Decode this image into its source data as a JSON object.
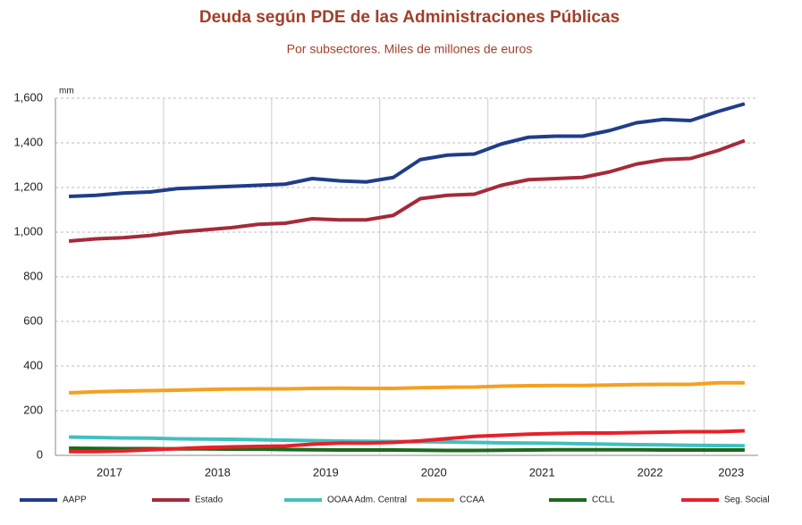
{
  "chart_data": {
    "type": "line",
    "title": "Deuda según PDE de las Administraciones Públicas",
    "subtitle": "Por subsectores. Miles de millones de euros",
    "y_label": "mm",
    "categories": [
      "2017",
      null,
      null,
      null,
      "2018",
      null,
      null,
      null,
      "2019",
      null,
      null,
      null,
      "2020",
      null,
      null,
      null,
      "2021",
      null,
      null,
      null,
      "2022",
      null,
      null,
      null,
      "2023",
      null
    ],
    "ylim": [
      0,
      1600
    ],
    "yticks": [
      0,
      200,
      400,
      600,
      800,
      {
        "value": 1000,
        "label": "1,000"
      },
      {
        "value": 1200,
        "label": "1,200"
      },
      {
        "value": 1400,
        "label": "1,400"
      },
      {
        "value": 1600,
        "label": "1,600"
      }
    ],
    "grid": true,
    "legend": "bottom",
    "series": [
      {
        "name": "AAPP",
        "color": "#1f3d8a",
        "values": [
          1160,
          1165,
          1175,
          1180,
          1195,
          1200,
          1205,
          1210,
          1215,
          1240,
          1230,
          1225,
          1245,
          1325,
          1345,
          1350,
          1395,
          1425,
          1430,
          1430,
          1455,
          1490,
          1505,
          1500,
          1540,
          1575
        ]
      },
      {
        "name": "Estado",
        "color": "#a52a3a",
        "values": [
          960,
          970,
          975,
          985,
          1000,
          1010,
          1020,
          1035,
          1040,
          1060,
          1055,
          1055,
          1075,
          1150,
          1165,
          1170,
          1210,
          1235,
          1240,
          1245,
          1270,
          1305,
          1325,
          1330,
          1365,
          1410
        ]
      },
      {
        "name": "OOAA Adm. Central",
        "color": "#40c0c0",
        "values": [
          82,
          80,
          78,
          77,
          74,
          73,
          72,
          70,
          68,
          66,
          64,
          63,
          62,
          61,
          60,
          58,
          56,
          55,
          54,
          52,
          50,
          48,
          47,
          45,
          44,
          43
        ]
      },
      {
        "name": "CCAA",
        "color": "#f5a020",
        "values": [
          280,
          285,
          288,
          290,
          292,
          295,
          297,
          298,
          298,
          300,
          301,
          300,
          300,
          303,
          305,
          306,
          310,
          312,
          313,
          313,
          315,
          317,
          318,
          318,
          325,
          325
        ]
      },
      {
        "name": "CCLL",
        "color": "#1a6a1a",
        "values": [
          32,
          31,
          30,
          30,
          29,
          29,
          28,
          28,
          26,
          25,
          24,
          24,
          24,
          23,
          22,
          22,
          23,
          24,
          25,
          25,
          25,
          25,
          24,
          24,
          24,
          24
        ]
      },
      {
        "name": "Seg. Social",
        "color": "#e8202a",
        "values": [
          17,
          17,
          20,
          25,
          30,
          35,
          38,
          40,
          42,
          50,
          55,
          55,
          58,
          65,
          75,
          85,
          90,
          95,
          98,
          100,
          100,
          102,
          104,
          106,
          106,
          110
        ]
      }
    ]
  }
}
